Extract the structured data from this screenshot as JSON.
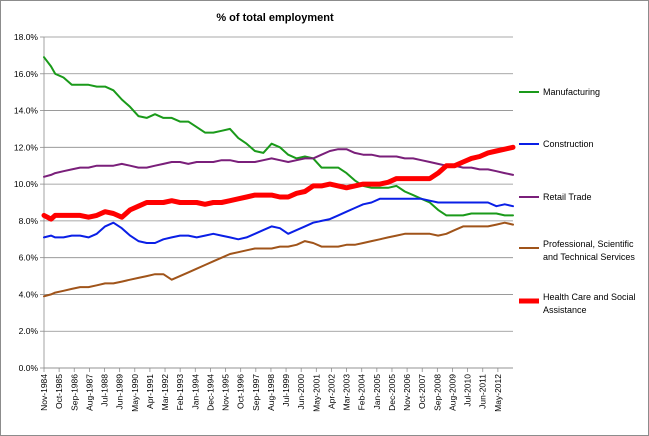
{
  "chart_data": {
    "type": "line",
    "title": "% of total employment",
    "xlabel": "",
    "ylabel": "",
    "ylim": [
      0,
      18
    ],
    "y_step": 2,
    "y_tick_labels": [
      "0.0%",
      "2.0%",
      "4.0%",
      "6.0%",
      "8.0%",
      "10.0%",
      "12.0%",
      "14.0%",
      "16.0%",
      "18.0%"
    ],
    "grid": "horizontal",
    "legend_position": "right",
    "x_tick_labels": [
      "Nov-1984",
      "Oct-1985",
      "Sep-1986",
      "Aug-1987",
      "Jul-1988",
      "Jun-1989",
      "May-1990",
      "Apr-1991",
      "Mar-1992",
      "Feb-1993",
      "Jan-1994",
      "Dec-1994",
      "Nov-1995",
      "Oct-1996",
      "Sep-1997",
      "Aug-1998",
      "Jul-1999",
      "Jun-2000",
      "May-2001",
      "Apr-2002",
      "Mar-2003",
      "Feb-2004",
      "Jan-2005",
      "Dec-2005",
      "Nov-2006",
      "Oct-2007",
      "Sep-2008",
      "Aug-2009",
      "Jul-2010",
      "Jun-2011",
      "May-2012"
    ],
    "x": [
      1984.83,
      1985.25,
      1985.5,
      1986.0,
      1986.5,
      1987.0,
      1987.5,
      1988.0,
      1988.5,
      1989.0,
      1989.5,
      1990.0,
      1990.5,
      1991.0,
      1991.5,
      1992.0,
      1992.5,
      1993.0,
      1993.5,
      1994.0,
      1994.5,
      1995.0,
      1995.5,
      1996.0,
      1996.5,
      1997.0,
      1997.5,
      1998.0,
      1998.5,
      1999.0,
      1999.5,
      2000.0,
      2000.5,
      2001.0,
      2001.5,
      2002.0,
      2002.5,
      2003.0,
      2003.5,
      2004.0,
      2004.5,
      2005.0,
      2005.5,
      2006.0,
      2006.5,
      2007.0,
      2007.5,
      2008.0,
      2008.5,
      2009.0,
      2009.5,
      2010.0,
      2010.5,
      2011.0,
      2011.5,
      2012.0,
      2012.5,
      2013.0
    ],
    "series": [
      {
        "name": "Manufacturing",
        "color": "#1a9a1a",
        "width": 2,
        "values": [
          16.9,
          16.4,
          16.0,
          15.8,
          15.4,
          15.4,
          15.4,
          15.3,
          15.3,
          15.1,
          14.6,
          14.2,
          13.7,
          13.6,
          13.8,
          13.6,
          13.6,
          13.4,
          13.4,
          13.1,
          12.8,
          12.8,
          12.9,
          13.0,
          12.5,
          12.2,
          11.8,
          11.7,
          12.2,
          12.0,
          11.6,
          11.4,
          11.5,
          11.4,
          10.9,
          10.9,
          10.9,
          10.6,
          10.2,
          9.9,
          9.8,
          9.8,
          9.8,
          9.9,
          9.6,
          9.4,
          9.2,
          9.0,
          8.6,
          8.3,
          8.3,
          8.3,
          8.4,
          8.4,
          8.4,
          8.4,
          8.3,
          8.3
        ]
      },
      {
        "name": "Construction",
        "color": "#0a1fe6",
        "width": 2,
        "values": [
          7.1,
          7.2,
          7.1,
          7.1,
          7.2,
          7.2,
          7.1,
          7.3,
          7.7,
          7.9,
          7.6,
          7.2,
          6.9,
          6.8,
          6.8,
          7.0,
          7.1,
          7.2,
          7.2,
          7.1,
          7.2,
          7.3,
          7.2,
          7.1,
          7.0,
          7.1,
          7.3,
          7.5,
          7.7,
          7.6,
          7.3,
          7.5,
          7.7,
          7.9,
          8.0,
          8.1,
          8.3,
          8.5,
          8.7,
          8.9,
          9.0,
          9.2,
          9.2,
          9.2,
          9.2,
          9.2,
          9.2,
          9.1,
          9.0,
          9.0,
          9.0,
          9.0,
          9.0,
          9.0,
          9.0,
          8.8,
          8.9,
          8.8
        ]
      },
      {
        "name": "Retail Trade",
        "color": "#7a1f7a",
        "width": 2,
        "values": [
          10.4,
          10.5,
          10.6,
          10.7,
          10.8,
          10.9,
          10.9,
          11.0,
          11.0,
          11.0,
          11.1,
          11.0,
          10.9,
          10.9,
          11.0,
          11.1,
          11.2,
          11.2,
          11.1,
          11.2,
          11.2,
          11.2,
          11.3,
          11.3,
          11.2,
          11.2,
          11.2,
          11.3,
          11.4,
          11.3,
          11.2,
          11.3,
          11.4,
          11.4,
          11.6,
          11.8,
          11.9,
          11.9,
          11.7,
          11.6,
          11.6,
          11.5,
          11.5,
          11.5,
          11.4,
          11.4,
          11.3,
          11.2,
          11.1,
          11.0,
          11.0,
          10.9,
          10.9,
          10.8,
          10.8,
          10.7,
          10.6,
          10.5
        ]
      },
      {
        "name": "Professional, Scientific and Technical Services",
        "color": "#a0541a",
        "width": 2,
        "values": [
          3.9,
          4.0,
          4.1,
          4.2,
          4.3,
          4.4,
          4.4,
          4.5,
          4.6,
          4.6,
          4.7,
          4.8,
          4.9,
          5.0,
          5.1,
          5.1,
          4.8,
          5.0,
          5.2,
          5.4,
          5.6,
          5.8,
          6.0,
          6.2,
          6.3,
          6.4,
          6.5,
          6.5,
          6.5,
          6.6,
          6.6,
          6.7,
          6.9,
          6.8,
          6.6,
          6.6,
          6.6,
          6.7,
          6.7,
          6.8,
          6.9,
          7.0,
          7.1,
          7.2,
          7.3,
          7.3,
          7.3,
          7.3,
          7.2,
          7.3,
          7.5,
          7.7,
          7.7,
          7.7,
          7.7,
          7.8,
          7.9,
          7.8
        ]
      },
      {
        "name": "Health Care and Social Assistance",
        "color": "#ff0000",
        "width": 5,
        "values": [
          8.3,
          8.1,
          8.3,
          8.3,
          8.3,
          8.3,
          8.2,
          8.3,
          8.5,
          8.4,
          8.2,
          8.6,
          8.8,
          9.0,
          9.0,
          9.0,
          9.1,
          9.0,
          9.0,
          9.0,
          8.9,
          9.0,
          9.0,
          9.1,
          9.2,
          9.3,
          9.4,
          9.4,
          9.4,
          9.3,
          9.3,
          9.5,
          9.6,
          9.9,
          9.9,
          10.0,
          9.9,
          9.8,
          9.9,
          10.0,
          10.0,
          10.0,
          10.1,
          10.3,
          10.3,
          10.3,
          10.3,
          10.3,
          10.6,
          11.0,
          11.0,
          11.2,
          11.4,
          11.5,
          11.7,
          11.8,
          11.9,
          12.0
        ]
      }
    ]
  }
}
